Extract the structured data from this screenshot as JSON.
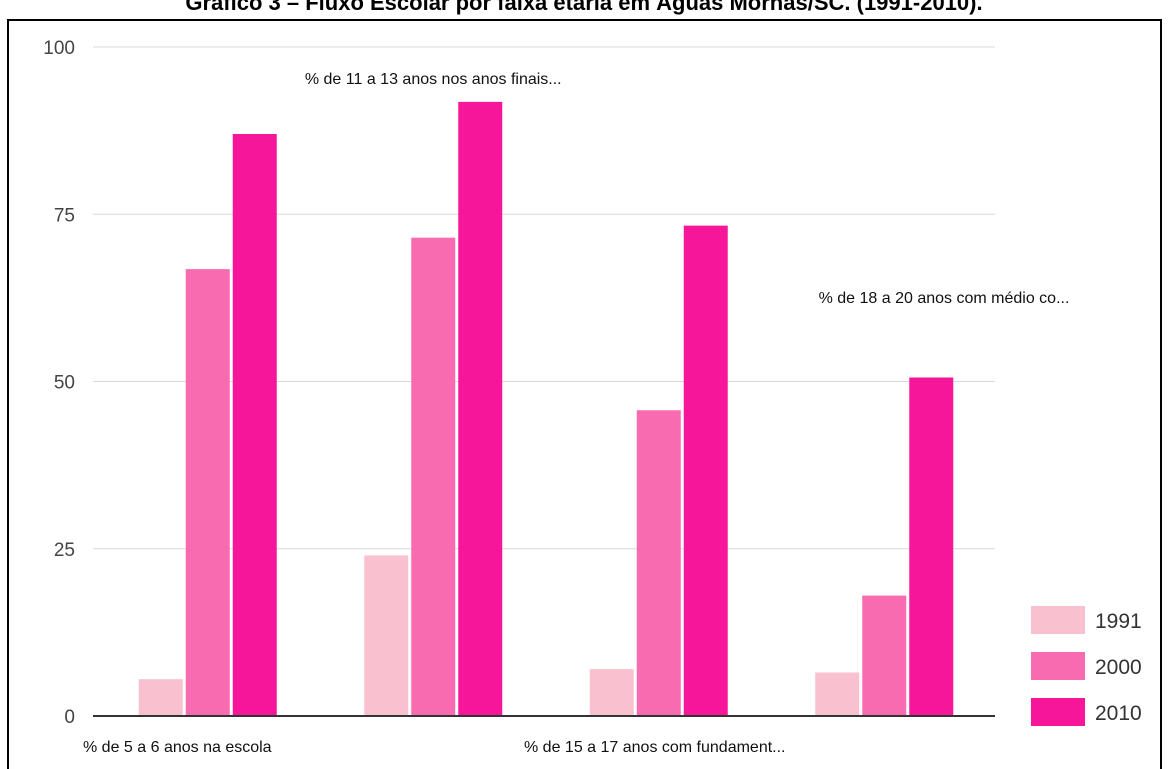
{
  "chart_data": {
    "type": "bar",
    "title": "Gráfico 3 – Fluxo Escolar por faixa etária em Águas Mornas/SC. (1991-2010).",
    "categories": [
      "% de 5 a 6 anos na escola",
      "% de 11 a 13 anos nos anos finais...",
      "% de 15 a 17 anos com fundament...",
      "% de 18 a 20 anos com médio co..."
    ],
    "series": [
      {
        "name": "1991",
        "color": "#f9c0cf",
        "values": [
          5.5,
          24.0,
          7.0,
          6.5
        ]
      },
      {
        "name": "2000",
        "color": "#f86bb0",
        "values": [
          66.8,
          71.5,
          45.7,
          18.0
        ]
      },
      {
        "name": "2010",
        "color": "#f5169a",
        "values": [
          87.0,
          91.8,
          73.3,
          50.6
        ]
      }
    ],
    "y_ticks": [
      "0",
      "25",
      "50",
      "75",
      "100"
    ],
    "ylim": [
      0,
      100
    ],
    "grid": true,
    "legend_position": "bottom-right",
    "colors": {
      "grid": "#d9d9d9",
      "axis": "#333333",
      "frame": "#000000"
    }
  }
}
